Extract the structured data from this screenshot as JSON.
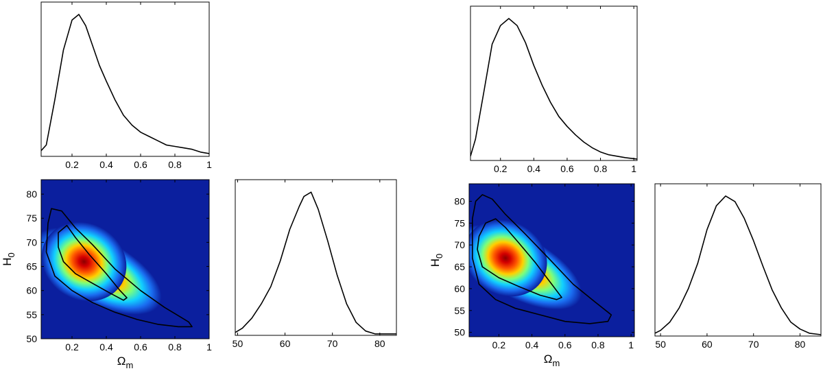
{
  "chart_data": [
    {
      "id": "left_omega_marginal",
      "type": "line",
      "xlabel": "",
      "ylabel": "",
      "xlim": [
        0.02,
        1.0
      ],
      "ylim": [
        0,
        1
      ],
      "xticks": [
        0.2,
        0.4,
        0.6,
        0.8,
        1
      ],
      "xticklabels": [
        "0.2",
        "0.4",
        "0.6",
        "0.8",
        "1"
      ],
      "yticks": [],
      "x": [
        0.02,
        0.05,
        0.1,
        0.15,
        0.2,
        0.24,
        0.28,
        0.32,
        0.36,
        0.4,
        0.45,
        0.5,
        0.55,
        0.6,
        0.65,
        0.7,
        0.75,
        0.8,
        0.85,
        0.9,
        0.95,
        1.0
      ],
      "y": [
        0.04,
        0.08,
        0.4,
        0.75,
        0.96,
        1.0,
        0.92,
        0.78,
        0.64,
        0.53,
        0.4,
        0.29,
        0.22,
        0.17,
        0.14,
        0.11,
        0.08,
        0.07,
        0.06,
        0.05,
        0.03,
        0.02
      ]
    },
    {
      "id": "left_joint",
      "type": "heatmap",
      "xlabel": "Ω",
      "xlabel_sub": "m",
      "ylabel": "H",
      "ylabel_sub": "0",
      "xlim": [
        0.02,
        1.0
      ],
      "ylim": [
        50,
        83
      ],
      "xticks": [
        0.2,
        0.4,
        0.6,
        0.8,
        1
      ],
      "xticklabels": [
        "0.2",
        "0.4",
        "0.6",
        "0.8",
        "1"
      ],
      "yticks": [
        50,
        55,
        60,
        65,
        70,
        75,
        80
      ],
      "yticklabels": [
        "50",
        "55",
        "60",
        "65",
        "70",
        "75",
        "80"
      ],
      "peak": [
        0.27,
        66
      ],
      "contours": [
        {
          "level": "inner",
          "points": [
            [
              0.12,
              72
            ],
            [
              0.17,
              73.5
            ],
            [
              0.22,
              71
            ],
            [
              0.3,
              67.5
            ],
            [
              0.4,
              63.5
            ],
            [
              0.48,
              60
            ],
            [
              0.52,
              58.5
            ],
            [
              0.5,
              58
            ],
            [
              0.42,
              59.5
            ],
            [
              0.32,
              61.5
            ],
            [
              0.22,
              63.5
            ],
            [
              0.15,
              66
            ],
            [
              0.12,
              69
            ],
            [
              0.12,
              72
            ]
          ]
        },
        {
          "level": "outer",
          "points": [
            [
              0.06,
              74
            ],
            [
              0.08,
              77
            ],
            [
              0.14,
              76.5
            ],
            [
              0.22,
              73
            ],
            [
              0.32,
              69.5
            ],
            [
              0.45,
              64.5
            ],
            [
              0.6,
              60
            ],
            [
              0.74,
              56.5
            ],
            [
              0.88,
              53.5
            ],
            [
              0.9,
              52.5
            ],
            [
              0.82,
              52.5
            ],
            [
              0.7,
              53
            ],
            [
              0.58,
              54
            ],
            [
              0.45,
              55.5
            ],
            [
              0.32,
              57.5
            ],
            [
              0.2,
              60
            ],
            [
              0.1,
              63
            ],
            [
              0.05,
              68
            ],
            [
              0.06,
              74
            ]
          ]
        }
      ]
    },
    {
      "id": "left_h0_marginal",
      "type": "line",
      "xlabel": "",
      "ylabel": "",
      "xlim": [
        49.5,
        83.5
      ],
      "ylim": [
        0,
        1
      ],
      "xticks": [
        50,
        60,
        70,
        80
      ],
      "xticklabels": [
        "50",
        "60",
        "70",
        "80"
      ],
      "yticks": [],
      "x": [
        49.5,
        51,
        53,
        55,
        57,
        59,
        61,
        63,
        64,
        65.5,
        67,
        69,
        71,
        73,
        75,
        77,
        79,
        81,
        83.5
      ],
      "y": [
        0.02,
        0.05,
        0.12,
        0.22,
        0.34,
        0.52,
        0.74,
        0.9,
        0.97,
        1.0,
        0.88,
        0.66,
        0.42,
        0.22,
        0.09,
        0.03,
        0.01,
        0.01,
        0.01
      ]
    },
    {
      "id": "right_omega_marginal",
      "type": "line",
      "xlabel": "",
      "ylabel": "",
      "xlim": [
        0.02,
        1.02
      ],
      "ylim": [
        0,
        1
      ],
      "xticks": [
        0.2,
        0.4,
        0.6,
        0.8,
        1
      ],
      "xticklabels": [
        "0.2",
        "0.4",
        "0.6",
        "0.8",
        "1"
      ],
      "yticks": [],
      "x": [
        0.02,
        0.05,
        0.1,
        0.15,
        0.2,
        0.25,
        0.3,
        0.35,
        0.4,
        0.45,
        0.5,
        0.55,
        0.6,
        0.65,
        0.7,
        0.75,
        0.8,
        0.85,
        0.9,
        0.95,
        1.02
      ],
      "y": [
        0.03,
        0.15,
        0.48,
        0.82,
        0.95,
        1.0,
        0.95,
        0.83,
        0.67,
        0.53,
        0.41,
        0.31,
        0.24,
        0.18,
        0.13,
        0.09,
        0.06,
        0.04,
        0.03,
        0.02,
        0.01
      ]
    },
    {
      "id": "right_joint",
      "type": "heatmap",
      "xlabel": "Ω",
      "xlabel_sub": "m",
      "ylabel": "H",
      "ylabel_sub": "0",
      "xlim": [
        0.02,
        1.02
      ],
      "ylim": [
        49,
        84
      ],
      "xticks": [
        0.2,
        0.4,
        0.6,
        0.8,
        1
      ],
      "xticklabels": [
        "0.2",
        "0.4",
        "0.6",
        "0.8",
        "1"
      ],
      "yticks": [
        50,
        55,
        60,
        65,
        70,
        75,
        80
      ],
      "yticklabels": [
        "50",
        "55",
        "60",
        "65",
        "70",
        "75",
        "80"
      ],
      "peak": [
        0.24,
        67
      ],
      "contours": [
        {
          "level": "inner",
          "points": [
            [
              0.08,
              72
            ],
            [
              0.12,
              75
            ],
            [
              0.18,
              76
            ],
            [
              0.24,
              74
            ],
            [
              0.32,
              70.5
            ],
            [
              0.42,
              66
            ],
            [
              0.52,
              61
            ],
            [
              0.58,
              58
            ],
            [
              0.55,
              57.5
            ],
            [
              0.45,
              58.5
            ],
            [
              0.32,
              60.5
            ],
            [
              0.2,
              62.5
            ],
            [
              0.1,
              65
            ],
            [
              0.07,
              69
            ],
            [
              0.08,
              72
            ]
          ]
        },
        {
          "level": "outer",
          "points": [
            [
              0.04,
              76
            ],
            [
              0.06,
              80
            ],
            [
              0.1,
              81.5
            ],
            [
              0.16,
              80.5
            ],
            [
              0.24,
              77
            ],
            [
              0.36,
              72.5
            ],
            [
              0.5,
              67
            ],
            [
              0.65,
              61
            ],
            [
              0.78,
              57
            ],
            [
              0.88,
              54
            ],
            [
              0.86,
              52.5
            ],
            [
              0.75,
              52
            ],
            [
              0.6,
              52.5
            ],
            [
              0.45,
              54
            ],
            [
              0.3,
              55.5
            ],
            [
              0.18,
              57.5
            ],
            [
              0.08,
              61
            ],
            [
              0.04,
              67
            ],
            [
              0.04,
              76
            ]
          ]
        }
      ]
    },
    {
      "id": "right_h0_marginal",
      "type": "line",
      "xlabel": "",
      "ylabel": "",
      "xlim": [
        48.8,
        84.5
      ],
      "ylim": [
        0,
        1
      ],
      "xticks": [
        50,
        60,
        70,
        80
      ],
      "xticklabels": [
        "50",
        "60",
        "70",
        "80"
      ],
      "yticks": [],
      "x": [
        48.8,
        50,
        52,
        54,
        56,
        58,
        60,
        62,
        64,
        66,
        68,
        70,
        72,
        74,
        76,
        78,
        80,
        82,
        84.5
      ],
      "y": [
        0.02,
        0.04,
        0.1,
        0.2,
        0.34,
        0.52,
        0.76,
        0.93,
        1.0,
        0.96,
        0.84,
        0.68,
        0.5,
        0.33,
        0.2,
        0.1,
        0.05,
        0.02,
        0.01
      ]
    }
  ]
}
